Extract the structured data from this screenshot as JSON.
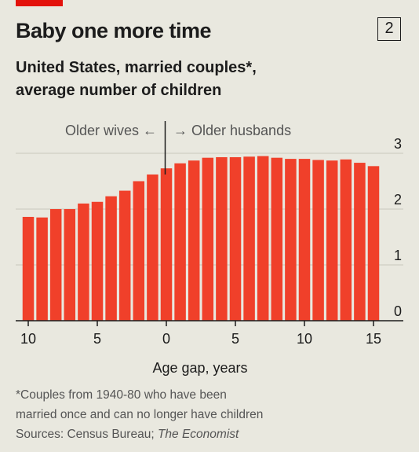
{
  "header": {
    "title": "Baby one more time",
    "badge": "2",
    "subtitle_line1": "United States, married couples*,",
    "subtitle_line2": "average number of children"
  },
  "annotations": {
    "left": "Older wives ←",
    "right": "→ Older husbands"
  },
  "footer": {
    "note_line1": "*Couples from 1940-80 who have been",
    "note_line2": "married once and can no longer have children",
    "sources_prefix": "Sources: Census Bureau; ",
    "sources_italic": "The Economist"
  },
  "colors": {
    "bar": "#f0402a",
    "background": "#e9e8df",
    "accent": "#e3120b"
  },
  "chart_data": {
    "type": "bar",
    "title": "Baby one more time",
    "subtitle": "United States, married couples*, average number of children",
    "xlabel": "Age gap, years",
    "ylabel": "",
    "x_axis_note": "Negative values (left of 0) = older wives; tick labels shown as absolute values",
    "ylim": [
      0,
      3
    ],
    "yticks": [
      0,
      1,
      2,
      3
    ],
    "xticks": [
      {
        "value": -10,
        "label": "10"
      },
      {
        "value": -5,
        "label": "5"
      },
      {
        "value": 0,
        "label": "0"
      },
      {
        "value": 5,
        "label": "5"
      },
      {
        "value": 10,
        "label": "10"
      },
      {
        "value": 15,
        "label": "15"
      }
    ],
    "x": [
      -10,
      -9,
      -8,
      -7,
      -6,
      -5,
      -4,
      -3,
      -2,
      -1,
      0,
      1,
      2,
      3,
      4,
      5,
      6,
      7,
      8,
      9,
      10,
      11,
      12,
      13,
      14,
      15
    ],
    "values": [
      1.86,
      1.85,
      2.0,
      2.0,
      2.1,
      2.13,
      2.23,
      2.33,
      2.5,
      2.62,
      2.73,
      2.82,
      2.87,
      2.92,
      2.93,
      2.93,
      2.94,
      2.95,
      2.92,
      2.9,
      2.9,
      2.88,
      2.87,
      2.89,
      2.83,
      2.77
    ],
    "grid": true
  }
}
